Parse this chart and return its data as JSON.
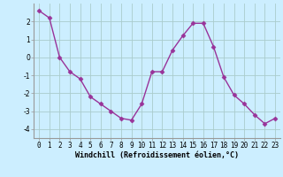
{
  "x": [
    0,
    1,
    2,
    3,
    4,
    5,
    6,
    7,
    8,
    9,
    10,
    11,
    12,
    13,
    14,
    15,
    16,
    17,
    18,
    19,
    20,
    21,
    22,
    23
  ],
  "y": [
    2.6,
    2.2,
    0.0,
    -0.8,
    -1.2,
    -2.2,
    -2.6,
    -3.0,
    -3.4,
    -3.5,
    -2.6,
    -0.8,
    -0.8,
    0.4,
    1.2,
    1.9,
    1.9,
    0.6,
    -1.1,
    -2.1,
    -2.6,
    -3.2,
    -3.7,
    -3.4
  ],
  "line_color": "#993399",
  "marker": "D",
  "marker_size": 2.5,
  "bg_color": "#cceeff",
  "grid_color": "#aacccc",
  "xlabel": "Windchill (Refroidissement éolien,°C)",
  "xlabel_fontsize": 6.0,
  "ylim": [
    -4.5,
    3.0
  ],
  "xlim": [
    -0.5,
    23.5
  ],
  "yticks": [
    -4,
    -3,
    -2,
    -1,
    0,
    1,
    2
  ],
  "xticks": [
    0,
    1,
    2,
    3,
    4,
    5,
    6,
    7,
    8,
    9,
    10,
    11,
    12,
    13,
    14,
    15,
    16,
    17,
    18,
    19,
    20,
    21,
    22,
    23
  ],
  "tick_fontsize": 5.5,
  "line_width": 1.0
}
